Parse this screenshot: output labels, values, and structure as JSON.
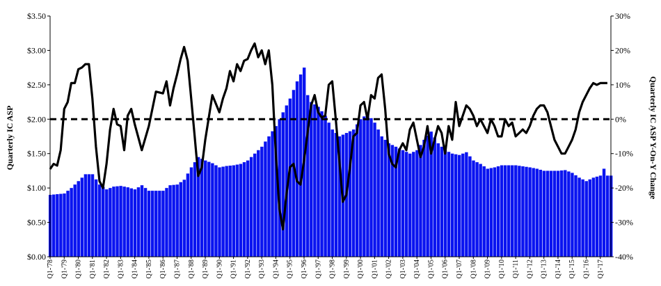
{
  "chart_data": {
    "type": "bar+line",
    "title": "",
    "ylabel_left": "Quarterly IC ASP",
    "ylabel_right": "Quarterly IC ASP Y-On-Y Change",
    "ylim_left": [
      0,
      3.5
    ],
    "ylim_right": [
      -40,
      30
    ],
    "left_ticks": [
      "$0.00",
      "$0.50",
      "$1.00",
      "$1.50",
      "$2.00",
      "$2.50",
      "$3.00",
      "$3.50"
    ],
    "right_ticks": [
      "-40%",
      "-30%",
      "-20%",
      "-10%",
      "0%",
      "10%",
      "20%",
      "30%"
    ],
    "x_labels": [
      "Q1-'78",
      "Q1-'79",
      "Q1-'80",
      "Q1-'81",
      "Q1-'82",
      "Q1-'83",
      "Q1-'84",
      "Q1-'85",
      "Q1-'86",
      "Q1-'87",
      "Q1-'88",
      "Q1-'89",
      "Q1-'90",
      "Q1-'91",
      "Q1-'92",
      "Q1-'93",
      "Q1-'94",
      "Q1-'95",
      "Q1-'96",
      "Q1-'97",
      "Q1-'98",
      "Q1-'99",
      "Q1-'00",
      "Q1-'01",
      "Q1-'02",
      "Q1-'03",
      "Q1-'04",
      "Q1-'05",
      "Q1-'06",
      "Q1-'07",
      "Q1-'08",
      "Q1-'09",
      "Q1-'10",
      "Q1-'11",
      "Q1-'12",
      "Q1-'13",
      "Q1-'14",
      "Q1-'15",
      "Q1-'16",
      "Q1-'17"
    ],
    "bar_color": "#0a14f0",
    "line_color": "#000000",
    "zero_line": "dashed",
    "series_asp_anchors": [
      [
        1978,
        0.9
      ],
      [
        1979,
        0.92
      ],
      [
        1979.5,
        1.0
      ],
      [
        1980,
        1.1
      ],
      [
        1980.5,
        1.2
      ],
      [
        1981,
        1.2
      ],
      [
        1981.5,
        1.05
      ],
      [
        1982,
        0.98
      ],
      [
        1982.5,
        1.02
      ],
      [
        1983,
        1.03
      ],
      [
        1983.5,
        1.01
      ],
      [
        1984,
        0.98
      ],
      [
        1984.5,
        1.04
      ],
      [
        1985,
        0.96
      ],
      [
        1986,
        0.96
      ],
      [
        1986.5,
        1.04
      ],
      [
        1987,
        1.05
      ],
      [
        1987.5,
        1.12
      ],
      [
        1988,
        1.3
      ],
      [
        1988.5,
        1.45
      ],
      [
        1989,
        1.4
      ],
      [
        1989.5,
        1.36
      ],
      [
        1990,
        1.3
      ],
      [
        1990.5,
        1.32
      ],
      [
        1991,
        1.33
      ],
      [
        1991.5,
        1.35
      ],
      [
        1992,
        1.4
      ],
      [
        1992.5,
        1.5
      ],
      [
        1993,
        1.6
      ],
      [
        1993.5,
        1.75
      ],
      [
        1994,
        1.9
      ],
      [
        1994.5,
        2.1
      ],
      [
        1995,
        2.3
      ],
      [
        1995.5,
        2.55
      ],
      [
        1996,
        2.75
      ],
      [
        1996.25,
        2.35
      ],
      [
        1996.5,
        2.25
      ],
      [
        1997,
        2.18
      ],
      [
        1997.5,
        2.05
      ],
      [
        1998,
        1.85
      ],
      [
        1998.5,
        1.75
      ],
      [
        1999,
        1.8
      ],
      [
        1999.5,
        1.85
      ],
      [
        2000,
        2.0
      ],
      [
        2000.5,
        2.08
      ],
      [
        2001,
        1.95
      ],
      [
        2001.5,
        1.75
      ],
      [
        2002,
        1.65
      ],
      [
        2002.5,
        1.6
      ],
      [
        2003,
        1.55
      ],
      [
        2003.5,
        1.5
      ],
      [
        2004,
        1.55
      ],
      [
        2004.5,
        1.7
      ],
      [
        2005,
        1.82
      ],
      [
        2005.5,
        1.65
      ],
      [
        2006,
        1.55
      ],
      [
        2006.5,
        1.5
      ],
      [
        2007,
        1.48
      ],
      [
        2007.5,
        1.52
      ],
      [
        2008,
        1.4
      ],
      [
        2008.5,
        1.35
      ],
      [
        2009,
        1.28
      ],
      [
        2009.5,
        1.3
      ],
      [
        2010,
        1.33
      ],
      [
        2011,
        1.33
      ],
      [
        2012,
        1.3
      ],
      [
        2012.5,
        1.28
      ],
      [
        2013,
        1.25
      ],
      [
        2014,
        1.25
      ],
      [
        2014.5,
        1.26
      ],
      [
        2015,
        1.22
      ],
      [
        2015.5,
        1.15
      ],
      [
        2016,
        1.1
      ],
      [
        2016.5,
        1.15
      ],
      [
        2017,
        1.18
      ],
      [
        2017.25,
        1.28
      ],
      [
        2017.5,
        1.18
      ]
    ],
    "series_yoy_anchors": [
      [
        1978,
        -14.5
      ],
      [
        1978.25,
        -13
      ],
      [
        1978.5,
        -13.5
      ],
      [
        1978.75,
        -9
      ],
      [
        1979,
        3
      ],
      [
        1979.25,
        5
      ],
      [
        1979.5,
        10.5
      ],
      [
        1979.75,
        10.5
      ],
      [
        1980,
        14.5
      ],
      [
        1980.25,
        15
      ],
      [
        1980.5,
        16
      ],
      [
        1980.75,
        16
      ],
      [
        1981,
        6
      ],
      [
        1981.25,
        -8
      ],
      [
        1981.5,
        -18
      ],
      [
        1981.75,
        -20
      ],
      [
        1982,
        -13
      ],
      [
        1982.25,
        -3
      ],
      [
        1982.5,
        3
      ],
      [
        1982.75,
        -1.5
      ],
      [
        1983,
        -2
      ],
      [
        1983.25,
        -9
      ],
      [
        1983.5,
        1
      ],
      [
        1983.75,
        3
      ],
      [
        1984,
        -1.5
      ],
      [
        1984.5,
        -9
      ],
      [
        1985,
        -2
      ],
      [
        1985.5,
        8
      ],
      [
        1986,
        7.5
      ],
      [
        1986.25,
        11
      ],
      [
        1986.5,
        4
      ],
      [
        1986.75,
        9
      ],
      [
        1987,
        13
      ],
      [
        1987.25,
        17.5
      ],
      [
        1987.5,
        21
      ],
      [
        1987.75,
        17
      ],
      [
        1988,
        6
      ],
      [
        1988.25,
        -5
      ],
      [
        1988.5,
        -16.5
      ],
      [
        1988.75,
        -14
      ],
      [
        1989,
        -6
      ],
      [
        1989.5,
        7
      ],
      [
        1990,
        2
      ],
      [
        1990.25,
        6
      ],
      [
        1990.5,
        9
      ],
      [
        1990.75,
        14
      ],
      [
        1991,
        11
      ],
      [
        1991.25,
        16
      ],
      [
        1991.5,
        14
      ],
      [
        1991.75,
        17
      ],
      [
        1992,
        17.5
      ],
      [
        1992.25,
        20
      ],
      [
        1992.5,
        22
      ],
      [
        1992.75,
        18
      ],
      [
        1993,
        20
      ],
      [
        1993.25,
        16
      ],
      [
        1993.5,
        20
      ],
      [
        1993.75,
        10
      ],
      [
        1994,
        -10
      ],
      [
        1994.25,
        -26
      ],
      [
        1994.5,
        -32
      ],
      [
        1994.75,
        -22
      ],
      [
        1995,
        -14
      ],
      [
        1995.25,
        -13
      ],
      [
        1995.5,
        -18
      ],
      [
        1995.75,
        -19
      ],
      [
        1996,
        -12
      ],
      [
        1996.5,
        4
      ],
      [
        1996.75,
        7
      ],
      [
        1997,
        2
      ],
      [
        1997.25,
        0.5
      ],
      [
        1997.5,
        1
      ],
      [
        1997.75,
        10
      ],
      [
        1998,
        11
      ],
      [
        1998.25,
        0
      ],
      [
        1998.5,
        -12
      ],
      [
        1998.75,
        -24
      ],
      [
        1999,
        -22
      ],
      [
        1999.25,
        -14
      ],
      [
        1999.5,
        -5
      ],
      [
        1999.75,
        -4
      ],
      [
        2000,
        4
      ],
      [
        2000.25,
        5
      ],
      [
        2000.5,
        0
      ],
      [
        2000.75,
        7
      ],
      [
        2001,
        6
      ],
      [
        2001.25,
        12
      ],
      [
        2001.5,
        13
      ],
      [
        2001.75,
        3
      ],
      [
        2002,
        -10
      ],
      [
        2002.25,
        -13
      ],
      [
        2002.5,
        -14
      ],
      [
        2002.75,
        -9
      ],
      [
        2003,
        -7
      ],
      [
        2003.25,
        -9
      ],
      [
        2003.5,
        -3
      ],
      [
        2003.75,
        -1
      ],
      [
        2004,
        -6
      ],
      [
        2004.25,
        -11
      ],
      [
        2004.5,
        -8
      ],
      [
        2004.75,
        -2
      ],
      [
        2005,
        -10
      ],
      [
        2005.25,
        -6
      ],
      [
        2005.5,
        -2
      ],
      [
        2005.75,
        -4
      ],
      [
        2006,
        -10
      ],
      [
        2006.25,
        -2
      ],
      [
        2006.5,
        -6
      ],
      [
        2006.75,
        5
      ],
      [
        2007,
        -2
      ],
      [
        2007.25,
        1
      ],
      [
        2007.5,
        4
      ],
      [
        2007.75,
        3
      ],
      [
        2008,
        1
      ],
      [
        2008.25,
        -2
      ],
      [
        2008.5,
        0
      ],
      [
        2008.75,
        -2
      ],
      [
        2009,
        -4
      ],
      [
        2009.25,
        0
      ],
      [
        2009.5,
        -2
      ],
      [
        2009.75,
        -5
      ],
      [
        2010,
        -5
      ],
      [
        2010.25,
        0
      ],
      [
        2010.5,
        -2
      ],
      [
        2010.75,
        -1
      ],
      [
        2011,
        -5
      ],
      [
        2011.25,
        -4
      ],
      [
        2011.5,
        -3
      ],
      [
        2011.75,
        -4
      ],
      [
        2012,
        -2
      ],
      [
        2012.25,
        1
      ],
      [
        2012.5,
        3
      ],
      [
        2012.75,
        4
      ],
      [
        2013,
        4
      ],
      [
        2013.25,
        2
      ],
      [
        2013.5,
        -2
      ],
      [
        2013.75,
        -6
      ],
      [
        2014,
        -8
      ],
      [
        2014.25,
        -10
      ],
      [
        2014.5,
        -10
      ],
      [
        2014.75,
        -8
      ],
      [
        2015,
        -6
      ],
      [
        2015.25,
        -3
      ],
      [
        2015.5,
        2
      ],
      [
        2015.75,
        5
      ],
      [
        2016,
        7
      ],
      [
        2016.25,
        9
      ],
      [
        2016.5,
        10.5
      ],
      [
        2016.75,
        10
      ],
      [
        2017,
        10.5
      ],
      [
        2017.5,
        10.5
      ]
    ]
  }
}
